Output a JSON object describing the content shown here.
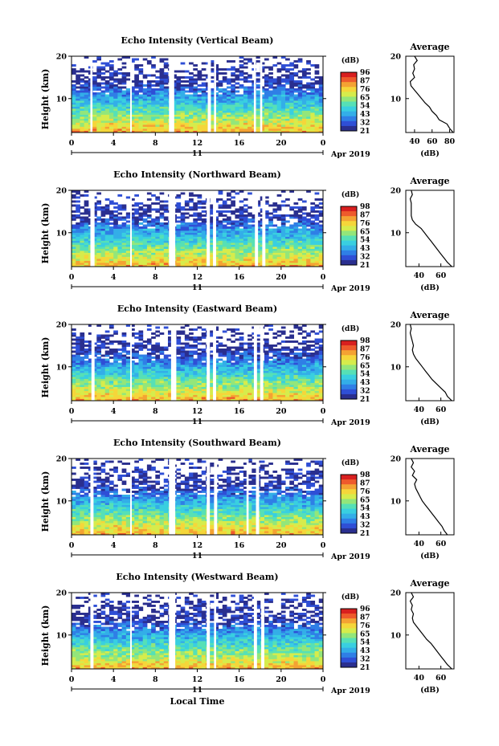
{
  "colors": {
    "scale": [
      "#2a2f8f",
      "#2f4fd6",
      "#2f7fe6",
      "#33aee8",
      "#39cfe0",
      "#56e0b6",
      "#93e67a",
      "#d6ec4c",
      "#f5d63a",
      "#f4a233",
      "#ee5a2c",
      "#d81f1f"
    ],
    "gap": "#ffffff",
    "axis": "#000000"
  },
  "chart_data": [
    {
      "type": "heatmap",
      "title": "Echo Intensity (Vertical Beam)",
      "ylabel": "Height (km)",
      "xticks": [
        "0",
        "4",
        "8",
        "12",
        "16",
        "20",
        "0"
      ],
      "yticks": [
        "10",
        "20"
      ],
      "date_day": "11",
      "date_label": "Apr 2019",
      "ylim": [
        2,
        20
      ],
      "xlim": [
        0,
        24
      ],
      "colorbar": {
        "label": "(dB)",
        "ticks": [
          "96",
          "87",
          "76",
          "65",
          "54",
          "43",
          "32",
          "21"
        ]
      },
      "data_gaps_hours": [
        [
          1.8,
          2.0
        ],
        [
          5.6,
          5.75
        ],
        [
          9.3,
          9.8
        ],
        [
          13.0,
          13.3
        ],
        [
          13.6,
          13.8
        ],
        [
          17.4,
          17.6
        ],
        [
          18.0,
          18.2
        ]
      ],
      "average_profile": {
        "title": "Average",
        "xlabel": "(dB)",
        "xticks": [
          "40",
          "60",
          "80"
        ],
        "xlim": [
          30,
          85
        ],
        "yticks": [
          "10",
          "20"
        ],
        "height_km": [
          2,
          3,
          4,
          5,
          6,
          7,
          8,
          9,
          10,
          11,
          12,
          13,
          14,
          15,
          16,
          17,
          18,
          19,
          20
        ],
        "db": [
          84,
          80,
          77,
          68,
          65,
          60,
          57,
          52,
          48,
          44,
          40,
          36,
          35,
          40,
          38,
          40,
          39,
          43,
          40
        ]
      }
    },
    {
      "type": "heatmap",
      "title": "Echo Intensity (Northward Beam)",
      "ylabel": "Height (km)",
      "xticks": [
        "0",
        "4",
        "8",
        "12",
        "16",
        "20",
        "0"
      ],
      "yticks": [
        "10",
        "20"
      ],
      "date_day": "11",
      "date_label": "Apr 2019",
      "ylim": [
        2,
        20
      ],
      "xlim": [
        0,
        24
      ],
      "colorbar": {
        "label": "(dB)",
        "ticks": [
          "98",
          "87",
          "76",
          "65",
          "54",
          "43",
          "32",
          "21"
        ]
      },
      "data_gaps_hours": [
        [
          1.8,
          2.2
        ],
        [
          5.6,
          5.75
        ],
        [
          9.3,
          9.9
        ],
        [
          12.9,
          13.2
        ],
        [
          13.5,
          13.8
        ],
        [
          17.5,
          17.8
        ],
        [
          18.2,
          18.5
        ]
      ],
      "average_profile": {
        "title": "Average",
        "xlabel": "(dB)",
        "xticks": [
          "40",
          "60"
        ],
        "xlim": [
          28,
          72
        ],
        "yticks": [
          "10",
          "20"
        ],
        "height_km": [
          2,
          3,
          4,
          5,
          6,
          7,
          8,
          9,
          10,
          11,
          12,
          13,
          14,
          15,
          16,
          17,
          18,
          19,
          20
        ],
        "db": [
          70,
          66,
          63,
          60,
          57,
          54,
          51,
          48,
          45,
          42,
          37,
          34,
          33,
          33,
          33,
          33,
          32,
          34,
          33
        ]
      }
    },
    {
      "type": "heatmap",
      "title": "Echo Intensity (Eastward Beam)",
      "ylabel": "Height (km)",
      "xticks": [
        "0",
        "4",
        "8",
        "12",
        "16",
        "20",
        "0"
      ],
      "yticks": [
        "10",
        "20"
      ],
      "date_day": "11",
      "date_label": "Apr 2019",
      "ylim": [
        2,
        20
      ],
      "xlim": [
        0,
        24
      ],
      "colorbar": {
        "label": "(dB)",
        "ticks": [
          "98",
          "87",
          "76",
          "65",
          "54",
          "43",
          "32",
          "21"
        ]
      },
      "data_gaps_hours": [
        [
          1.9,
          2.2
        ],
        [
          5.6,
          5.75
        ],
        [
          9.5,
          10.0
        ],
        [
          12.9,
          13.2
        ],
        [
          13.5,
          13.8
        ],
        [
          17.4,
          17.7
        ],
        [
          18.0,
          18.3
        ]
      ],
      "average_profile": {
        "title": "Average",
        "xlabel": "(dB)",
        "xticks": [
          "40",
          "60"
        ],
        "xlim": [
          28,
          72
        ],
        "yticks": [
          "10",
          "20"
        ],
        "height_km": [
          2,
          3,
          4,
          5,
          6,
          7,
          8,
          9,
          10,
          11,
          12,
          13,
          14,
          15,
          16,
          17,
          18,
          19,
          20
        ],
        "db": [
          70,
          66,
          64,
          60,
          56,
          52,
          49,
          46,
          43,
          40,
          37,
          35,
          34,
          35,
          34,
          33,
          32,
          33,
          32
        ]
      }
    },
    {
      "type": "heatmap",
      "title": "Echo Intensity (Southward Beam)",
      "ylabel": "Height (km)",
      "xticks": [
        "0",
        "4",
        "8",
        "12",
        "16",
        "20",
        "0"
      ],
      "yticks": [
        "10",
        "20"
      ],
      "date_day": "11",
      "date_label": "Apr 2019",
      "ylim": [
        2,
        20
      ],
      "xlim": [
        0,
        24
      ],
      "colorbar": {
        "label": "(dB)",
        "ticks": [
          "98",
          "87",
          "76",
          "65",
          "54",
          "43",
          "32",
          "21"
        ]
      },
      "data_gaps_hours": [
        [
          1.8,
          2.1
        ],
        [
          5.6,
          5.75
        ],
        [
          9.3,
          9.9
        ],
        [
          12.9,
          13.2
        ],
        [
          13.6,
          13.9
        ],
        [
          16.7,
          16.9
        ],
        [
          17.6,
          17.9
        ]
      ],
      "average_profile": {
        "title": "Average",
        "xlabel": "(dB)",
        "xticks": [
          "40",
          "60"
        ],
        "xlim": [
          28,
          72
        ],
        "yticks": [
          "10",
          "20"
        ],
        "height_km": [
          2,
          3,
          4,
          5,
          6,
          7,
          8,
          9,
          10,
          11,
          12,
          13,
          14,
          15,
          16,
          17,
          18,
          19,
          20
        ],
        "db": [
          66,
          63,
          61,
          58,
          55,
          52,
          49,
          46,
          43,
          41,
          39,
          37,
          36,
          38,
          34,
          36,
          33,
          35,
          33
        ]
      }
    },
    {
      "type": "heatmap",
      "title": "Echo Intensity (Westward Beam)",
      "ylabel": "Height (km)",
      "xticks": [
        "0",
        "4",
        "8",
        "12",
        "16",
        "20",
        "0"
      ],
      "yticks": [
        "10",
        "20"
      ],
      "date_day": "11",
      "date_label": "Apr 2019",
      "xlabel": "Local Time",
      "ylim": [
        2,
        20
      ],
      "xlim": [
        0,
        24
      ],
      "colorbar": {
        "label": "(dB)",
        "ticks": [
          "96",
          "87",
          "76",
          "65",
          "54",
          "43",
          "32",
          "21"
        ]
      },
      "data_gaps_hours": [
        [
          1.8,
          2.1
        ],
        [
          5.6,
          5.75
        ],
        [
          9.3,
          9.9
        ],
        [
          12.9,
          13.2
        ],
        [
          13.6,
          13.8
        ],
        [
          17.4,
          17.7
        ],
        [
          18.1,
          18.4
        ]
      ],
      "average_profile": {
        "title": "Average",
        "xlabel": "(dB)",
        "xticks": [
          "40",
          "60"
        ],
        "xlim": [
          28,
          72
        ],
        "yticks": [
          "10",
          "20"
        ],
        "height_km": [
          2,
          3,
          4,
          5,
          6,
          7,
          8,
          9,
          10,
          11,
          12,
          13,
          14,
          15,
          16,
          17,
          18,
          19,
          20
        ],
        "db": [
          70,
          66,
          63,
          60,
          57,
          54,
          51,
          47,
          44,
          41,
          38,
          35,
          34,
          35,
          33,
          34,
          32,
          35,
          33
        ]
      }
    }
  ]
}
